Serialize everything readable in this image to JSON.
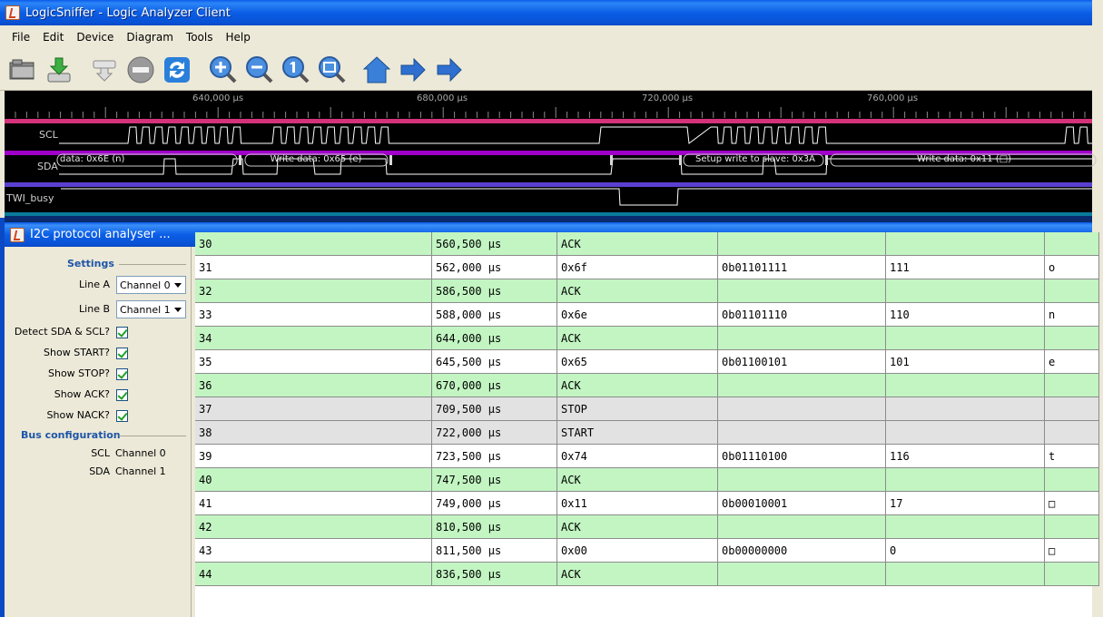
{
  "window": {
    "title": "LogicSniffer - Logic Analyzer Client"
  },
  "menubar": {
    "items": [
      "File",
      "Edit",
      "Device",
      "Diagram",
      "Tools",
      "Help"
    ]
  },
  "toolbar": {
    "buttons": [
      "open-file",
      "save-file",
      "capture",
      "cancel",
      "repeat",
      "zoom-in",
      "zoom-out",
      "zoom-default",
      "zoom-fit",
      "home",
      "forward",
      "forward-end"
    ]
  },
  "waveform": {
    "time_ticks": [
      "640,000 µs",
      "680,000 µs",
      "720,000 µs",
      "760,000 µs"
    ],
    "channels": [
      "SCL",
      "SDA",
      "TWI_busy"
    ],
    "annotations": [
      "data: 0x6E (n)",
      "Write data: 0x65 (e)",
      "Setup write to slave: 0x3A",
      "Write data: 0x11 (□)"
    ],
    "colors": {
      "scl": "#d4327a",
      "sda": "#a000c8",
      "busy": "#5b3fd0",
      "signal": "#ffffff"
    }
  },
  "dialog": {
    "title": "I2C protocol analyser ..."
  },
  "settings": {
    "header": "Settings",
    "line_a": {
      "label": "Line A",
      "value": "Channel 0"
    },
    "line_b": {
      "label": "Line B",
      "value": "Channel 1"
    },
    "checkboxes": [
      {
        "label": "Detect SDA & SCL?",
        "checked": true
      },
      {
        "label": "Show START?",
        "checked": true
      },
      {
        "label": "Show STOP?",
        "checked": true
      },
      {
        "label": "Show ACK?",
        "checked": true
      },
      {
        "label": "Show NACK?",
        "checked": true
      }
    ],
    "bus_header": "Bus configuration",
    "bus": [
      {
        "name": "SCL",
        "channel": "Channel 0"
      },
      {
        "name": "SDA",
        "channel": "Channel 1"
      }
    ]
  },
  "table": {
    "rows": [
      {
        "idx": "30",
        "time": "560,500 µs",
        "event": "ACK",
        "bin": "",
        "dec": "",
        "ascii": "",
        "kind": "ack"
      },
      {
        "idx": "31",
        "time": "562,000 µs",
        "event": "0x6f",
        "bin": "0b01101111",
        "dec": "111",
        "ascii": "o",
        "kind": "data"
      },
      {
        "idx": "32",
        "time": "586,500 µs",
        "event": "ACK",
        "bin": "",
        "dec": "",
        "ascii": "",
        "kind": "ack"
      },
      {
        "idx": "33",
        "time": "588,000 µs",
        "event": "0x6e",
        "bin": "0b01101110",
        "dec": "110",
        "ascii": "n",
        "kind": "data"
      },
      {
        "idx": "34",
        "time": "644,000 µs",
        "event": "ACK",
        "bin": "",
        "dec": "",
        "ascii": "",
        "kind": "ack"
      },
      {
        "idx": "35",
        "time": "645,500 µs",
        "event": "0x65",
        "bin": "0b01100101",
        "dec": "101",
        "ascii": "e",
        "kind": "data"
      },
      {
        "idx": "36",
        "time": "670,000 µs",
        "event": "ACK",
        "bin": "",
        "dec": "",
        "ascii": "",
        "kind": "ack"
      },
      {
        "idx": "37",
        "time": "709,500 µs",
        "event": "STOP",
        "bin": "",
        "dec": "",
        "ascii": "",
        "kind": "ctrl"
      },
      {
        "idx": "38",
        "time": "722,000 µs",
        "event": "START",
        "bin": "",
        "dec": "",
        "ascii": "",
        "kind": "ctrl"
      },
      {
        "idx": "39",
        "time": "723,500 µs",
        "event": "0x74",
        "bin": "0b01110100",
        "dec": "116",
        "ascii": "t",
        "kind": "data"
      },
      {
        "idx": "40",
        "time": "747,500 µs",
        "event": "ACK",
        "bin": "",
        "dec": "",
        "ascii": "",
        "kind": "ack"
      },
      {
        "idx": "41",
        "time": "749,000 µs",
        "event": "0x11",
        "bin": "0b00010001",
        "dec": "17",
        "ascii": "□",
        "kind": "data"
      },
      {
        "idx": "42",
        "time": "810,500 µs",
        "event": "ACK",
        "bin": "",
        "dec": "",
        "ascii": "",
        "kind": "ack"
      },
      {
        "idx": "43",
        "time": "811,500 µs",
        "event": "0x00",
        "bin": "0b00000000",
        "dec": "0",
        "ascii": "□",
        "kind": "data"
      },
      {
        "idx": "44",
        "time": "836,500 µs",
        "event": "ACK",
        "bin": "",
        "dec": "",
        "ascii": "",
        "kind": "ack"
      }
    ]
  }
}
